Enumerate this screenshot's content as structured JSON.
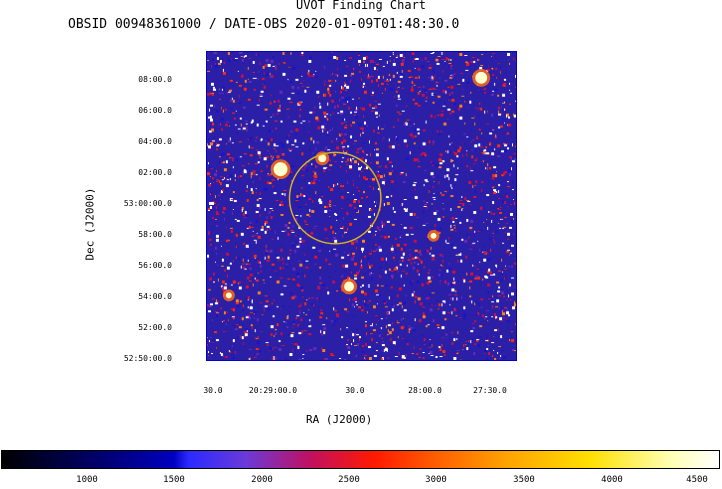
{
  "title": "UVOT Finding Chart",
  "subtitle": "OBSID 00948361000 / DATE-OBS 2020-01-09T01:48:30.0",
  "dec_ticks": [
    "08:00.0",
    "06:00.0",
    "04:00.0",
    "02:00.0",
    "53:00:00.0",
    "58:00.0",
    "56:00.0",
    "54:00.0",
    "52:00.0",
    "52:50:00.0"
  ],
  "ra_ticks": [
    "30.0",
    "20:29:00.0",
    "30.0",
    "28:00.0",
    "27:30.0"
  ],
  "xlabel": "RA (J2000)",
  "ylabel": "Dec (J2000)",
  "colorbar_ticks": [
    "1000",
    "1500",
    "2000",
    "2500",
    "3000",
    "3500",
    "4000",
    "4500"
  ],
  "colors": {
    "background": "#ffffff",
    "field_base": "#2a1fa6",
    "circle": "#d8b020",
    "frame": "#0000c8"
  }
}
